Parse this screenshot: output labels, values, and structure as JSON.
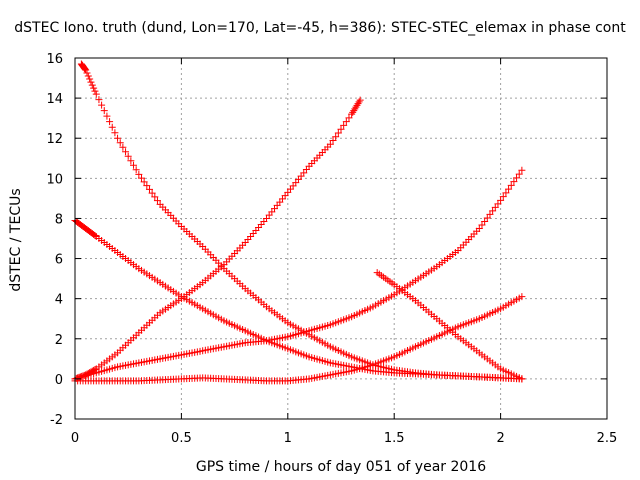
{
  "chart_data": {
    "type": "scatter",
    "title": "dSTEC Iono. truth (dund, Lon=170, Lat=-45, h=386): STEC-STEC_elemax in phase cont",
    "xlabel": "GPS time / hours of day 051 of year 2016",
    "ylabel": "dSTEC  / TECUs",
    "xlim": [
      0,
      2.5
    ],
    "ylim": [
      -2,
      16
    ],
    "x_ticks": [
      0,
      0.5,
      1,
      1.5,
      2,
      2.5
    ],
    "x_tick_labels": [
      "0",
      "0.5",
      "1",
      "1.5",
      "2",
      "2.5"
    ],
    "y_ticks": [
      -2,
      0,
      2,
      4,
      6,
      8,
      10,
      12,
      14,
      16
    ],
    "y_tick_labels": [
      "-2",
      "0",
      "2",
      "4",
      "6",
      "8",
      "10",
      "12",
      "14",
      "16"
    ],
    "grid": true,
    "marker": "+",
    "series_color": "#ff0000",
    "series": [
      {
        "x": [
          0.03,
          0.05,
          0.1,
          0.2,
          0.3,
          0.4,
          0.5,
          0.6,
          0.7,
          0.8,
          0.9,
          1.0,
          1.1,
          1.2,
          1.3,
          1.4,
          1.5,
          1.6,
          1.7,
          1.8,
          1.9,
          2.0,
          2.1
        ],
        "y": [
          15.7,
          15.4,
          14.2,
          12.0,
          10.2,
          8.7,
          7.6,
          6.6,
          5.5,
          4.5,
          3.6,
          2.8,
          2.2,
          1.6,
          1.1,
          0.7,
          0.45,
          0.3,
          0.2,
          0.15,
          0.1,
          0.05,
          0.0
        ]
      },
      {
        "x": [
          0.0,
          0.05,
          0.1,
          0.2,
          0.3,
          0.4,
          0.5,
          0.6,
          0.7,
          0.8,
          0.9,
          1.0,
          1.1,
          1.2,
          1.3,
          1.4,
          1.5,
          1.6,
          1.7,
          1.8,
          1.9,
          2.0,
          2.1
        ],
        "y": [
          7.9,
          7.5,
          7.1,
          6.3,
          5.5,
          4.8,
          4.1,
          3.5,
          2.9,
          2.4,
          1.9,
          1.5,
          1.1,
          0.8,
          0.6,
          0.4,
          0.3,
          0.25,
          0.2,
          0.15,
          0.1,
          0.05,
          0.0
        ]
      },
      {
        "x": [
          0.0,
          0.05,
          0.1,
          0.2,
          0.3,
          0.4,
          0.5,
          0.6,
          0.7,
          0.8,
          0.9,
          1.0,
          1.1,
          1.2,
          1.3,
          1.34
        ],
        "y": [
          0.0,
          0.2,
          0.5,
          1.3,
          2.3,
          3.3,
          4.0,
          4.8,
          5.7,
          6.8,
          8.0,
          9.3,
          10.6,
          11.7,
          13.2,
          13.9
        ]
      },
      {
        "x": [
          0.0,
          0.1,
          0.2,
          0.3,
          0.4,
          0.5,
          0.6,
          0.7,
          0.8,
          0.9,
          1.0,
          1.1,
          1.2,
          1.3,
          1.4,
          1.5,
          1.6,
          1.7,
          1.8,
          1.9,
          2.0,
          2.1
        ],
        "y": [
          0.0,
          0.3,
          0.6,
          0.8,
          1.0,
          1.2,
          1.4,
          1.6,
          1.8,
          1.9,
          2.1,
          2.4,
          2.7,
          3.1,
          3.6,
          4.2,
          4.9,
          5.6,
          6.4,
          7.5,
          8.9,
          10.4
        ]
      },
      {
        "x": [
          0.0,
          0.1,
          0.2,
          0.3,
          0.4,
          0.5,
          0.6,
          0.7,
          0.8,
          0.9,
          1.0,
          1.1,
          1.2,
          1.3,
          1.4,
          1.5,
          1.6,
          1.7,
          1.8,
          1.9,
          2.0,
          2.1
        ],
        "y": [
          -0.1,
          -0.1,
          -0.1,
          -0.1,
          -0.05,
          0.0,
          0.05,
          0.0,
          -0.05,
          -0.1,
          -0.1,
          0.0,
          0.2,
          0.4,
          0.7,
          1.1,
          1.6,
          2.1,
          2.6,
          3.0,
          3.5,
          4.1
        ]
      },
      {
        "x": [
          1.42,
          1.5,
          1.6,
          1.7,
          1.8,
          1.9,
          2.0,
          2.1
        ],
        "y": [
          5.3,
          4.7,
          3.9,
          3.0,
          2.1,
          1.3,
          0.5,
          0.0
        ]
      }
    ]
  }
}
